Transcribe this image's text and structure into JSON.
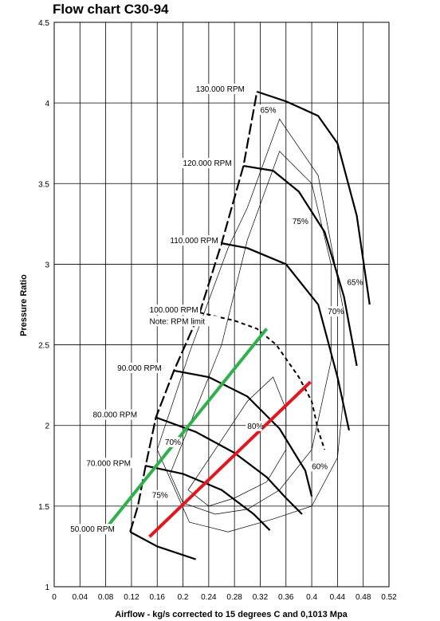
{
  "chart_data": {
    "type": "line",
    "title": "Flow chart C30-94",
    "xlabel": "Airflow - kg/s corrected to 15 degrees C and 0,1013 Mpa",
    "ylabel": "Pressure Ratio",
    "xlim": [
      0,
      0.52
    ],
    "ylim": [
      1,
      4.5
    ],
    "grid": true,
    "x_ticks": [
      "0",
      "0.04",
      "0.08",
      "0.12",
      "0.16",
      "0.2",
      "0.24",
      "0.28",
      "0.32",
      "0.36",
      "0.4",
      "0.44",
      "0.48",
      "0.52"
    ],
    "y_ticks": [
      "1",
      "1.5",
      "2",
      "2.5",
      "3",
      "3.5",
      "4",
      "4.5"
    ],
    "speed_lines": [
      {
        "name": "50.000 RPM",
        "x": [
          0.118,
          0.16,
          0.22
        ],
        "y": [
          1.34,
          1.25,
          1.17
        ]
      },
      {
        "name": "70.000 RPM",
        "x": [
          0.142,
          0.2,
          0.26,
          0.31,
          0.335
        ],
        "y": [
          1.75,
          1.7,
          1.6,
          1.45,
          1.35
        ]
      },
      {
        "name": "80.000 RPM",
        "x": [
          0.158,
          0.22,
          0.28,
          0.33,
          0.36,
          0.385
        ],
        "y": [
          2.05,
          1.96,
          1.83,
          1.68,
          1.55,
          1.45
        ]
      },
      {
        "name": "90.000 RPM",
        "x": [
          0.186,
          0.24,
          0.3,
          0.35,
          0.39,
          0.4
        ],
        "y": [
          2.34,
          2.3,
          2.18,
          1.98,
          1.72,
          1.56
        ]
      },
      {
        "name": "110.000 RPM",
        "x": [
          0.26,
          0.3,
          0.36,
          0.41,
          0.44,
          0.458
        ],
        "y": [
          3.13,
          3.1,
          3.0,
          2.75,
          2.3,
          1.97
        ]
      },
      {
        "name": "120.000 RPM",
        "x": [
          0.294,
          0.34,
          0.38,
          0.42,
          0.45,
          0.47
        ],
        "y": [
          3.61,
          3.58,
          3.45,
          3.2,
          2.8,
          2.37
        ]
      },
      {
        "name": "130.000 RPM",
        "x": [
          0.315,
          0.36,
          0.41,
          0.44,
          0.47,
          0.49
        ],
        "y": [
          4.07,
          4.01,
          3.92,
          3.75,
          3.3,
          2.75
        ]
      }
    ],
    "rpm_limit_line": {
      "name": "100.000 RPM",
      "x": [
        0.226,
        0.28,
        0.315,
        0.345,
        0.38,
        0.4,
        0.41,
        0.42
      ],
      "y": [
        2.7,
        2.65,
        2.6,
        2.5,
        2.3,
        2.15,
        1.97,
        1.85
      ]
    },
    "surge_line": {
      "x": [
        0.118,
        0.13,
        0.142,
        0.158,
        0.186,
        0.226,
        0.26,
        0.294,
        0.315
      ],
      "y": [
        1.34,
        1.5,
        1.75,
        2.05,
        2.34,
        2.7,
        3.13,
        3.61,
        4.07
      ]
    },
    "efficiency_islands": [
      {
        "name": "80%",
        "x": [
          0.208,
          0.25,
          0.3,
          0.34,
          0.36,
          0.36,
          0.33,
          0.28,
          0.24,
          0.208
        ],
        "y": [
          1.6,
          1.85,
          2.15,
          2.3,
          2.1,
          1.85,
          1.65,
          1.55,
          1.5,
          1.6
        ]
      },
      {
        "name": "75%",
        "x": [
          0.18,
          0.2,
          0.26,
          0.3,
          0.35,
          0.4,
          0.43,
          0.43,
          0.4,
          0.35,
          0.3,
          0.25,
          0.2,
          0.18
        ],
        "y": [
          1.7,
          1.9,
          2.5,
          3.15,
          3.7,
          3.5,
          3.0,
          2.4,
          1.85,
          1.6,
          1.48,
          1.45,
          1.52,
          1.7
        ]
      },
      {
        "name": "70%",
        "x": [
          0.16,
          0.21,
          0.27,
          0.3,
          0.35,
          0.41,
          0.45,
          0.45,
          0.44,
          0.4,
          0.34,
          0.27,
          0.21,
          0.16
        ],
        "y": [
          1.85,
          2.45,
          3.1,
          3.35,
          3.9,
          3.55,
          2.7,
          2.2,
          1.8,
          1.5,
          1.42,
          1.34,
          1.4,
          1.85
        ]
      }
    ],
    "operating_lines": [
      {
        "color": "#2bb34a",
        "x": [
          0.08,
          0.33
        ],
        "y": [
          1.36,
          2.6
        ]
      },
      {
        "color": "#e8141b",
        "x": [
          0.148,
          0.398
        ],
        "y": [
          1.31,
          2.27
        ]
      }
    ],
    "annotations": [
      {
        "text": "130.000 RPM",
        "x": 0.22,
        "y": 4.07
      },
      {
        "text": "65%",
        "x": 0.32,
        "y": 3.94
      },
      {
        "text": "120.000 RPM",
        "x": 0.2,
        "y": 3.61
      },
      {
        "text": "75%",
        "x": 0.37,
        "y": 3.25
      },
      {
        "text": "110.000 RPM",
        "x": 0.18,
        "y": 3.13
      },
      {
        "text": "65%",
        "x": 0.455,
        "y": 2.87
      },
      {
        "text": "70%",
        "x": 0.425,
        "y": 2.69
      },
      {
        "text": "100.000 RPM",
        "x": 0.148,
        "y": 2.7
      },
      {
        "text": "Note: RPM limit",
        "x": 0.148,
        "y": 2.63
      },
      {
        "text": "90.000 RPM",
        "x": 0.098,
        "y": 2.34
      },
      {
        "text": "80.000 RPM",
        "x": 0.06,
        "y": 2.05
      },
      {
        "text": "80%",
        "x": 0.3,
        "y": 1.98
      },
      {
        "text": "70%",
        "x": 0.172,
        "y": 1.88
      },
      {
        "text": "70.000 RPM",
        "x": 0.05,
        "y": 1.75
      },
      {
        "text": "60%",
        "x": 0.4,
        "y": 1.73
      },
      {
        "text": "75%",
        "x": 0.152,
        "y": 1.55
      },
      {
        "text": "50.000 RPM",
        "x": 0.025,
        "y": 1.34
      }
    ]
  }
}
